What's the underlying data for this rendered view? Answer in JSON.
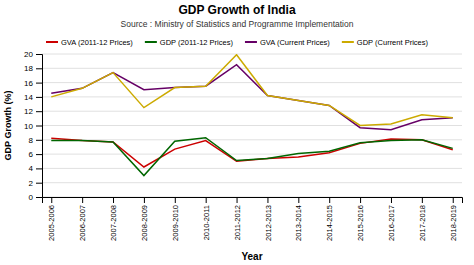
{
  "chart_data": {
    "type": "line",
    "title": "GDP Growth of India",
    "subtitle": "Source : Ministry of Statistics and Programme Implementation",
    "x_label": "Year",
    "y_label": "GDP Growth (%)",
    "categories": [
      "2005-2006",
      "2006-2007",
      "2007-2008",
      "2008-2009",
      "2009-2010",
      "2010-2011",
      "2011-2012",
      "2012-2013",
      "2013-2014",
      "2014-2015",
      "2015-2016",
      "2016-2017",
      "2017-2018",
      "2018-2019"
    ],
    "series": [
      {
        "name": "GVA (2011-12 Prices)",
        "color": "#cc0000",
        "values": [
          8.2,
          7.9,
          7.7,
          4.2,
          6.7,
          7.9,
          5.0,
          5.4,
          5.6,
          6.2,
          7.5,
          8.1,
          8.0,
          6.6
        ]
      },
      {
        "name": "GDP (2011-12 Prices)",
        "color": "#006600",
        "values": [
          7.9,
          7.9,
          7.7,
          3.0,
          7.8,
          8.3,
          5.1,
          5.4,
          6.1,
          6.4,
          7.6,
          7.9,
          8.0,
          6.8
        ]
      },
      {
        "name": "GVA (Current Prices)",
        "color": "#660066",
        "values": [
          14.5,
          15.2,
          17.4,
          15.0,
          15.3,
          15.5,
          18.5,
          14.2,
          13.5,
          12.8,
          9.7,
          9.4,
          10.8,
          11.1
        ]
      },
      {
        "name": "GDP (Current Prices)",
        "color": "#ccaa00",
        "values": [
          14.0,
          15.2,
          17.4,
          12.5,
          15.3,
          15.5,
          19.9,
          14.2,
          13.5,
          12.8,
          10.0,
          10.2,
          11.5,
          11.1
        ]
      }
    ],
    "ylim": [
      0,
      20
    ],
    "yticks": [
      0,
      2,
      4,
      6,
      8,
      10,
      12,
      14,
      16,
      18,
      20
    ],
    "grid": "y",
    "legend": "top"
  }
}
